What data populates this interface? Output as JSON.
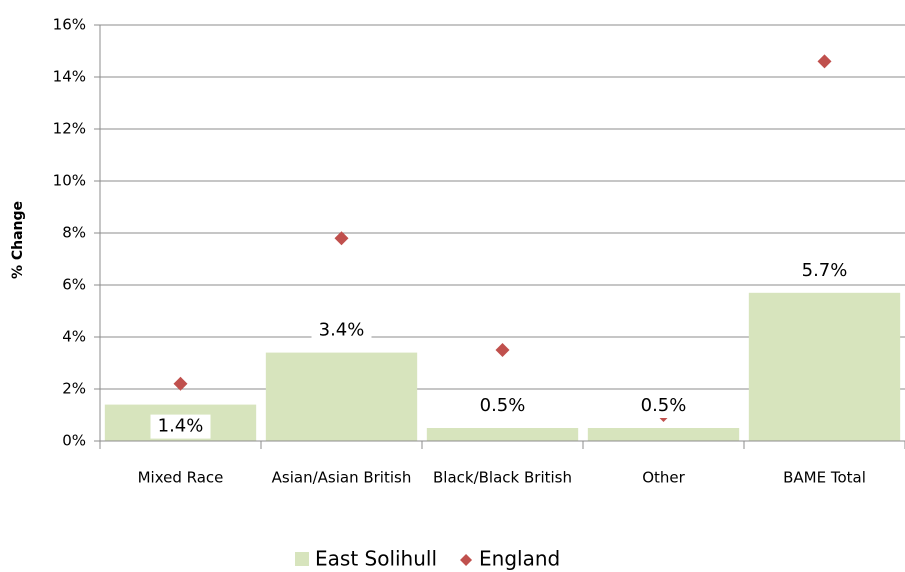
{
  "chart_data": {
    "type": "bar",
    "y_label": "% Change",
    "categories": [
      "Mixed Race",
      "Asian/Asian British",
      "Black/Black British",
      "Other",
      "BAME Total"
    ],
    "series": [
      {
        "name": "East Solihull",
        "color": "#d7e4bd",
        "values": [
          1.4,
          3.4,
          0.5,
          0.5,
          5.7
        ],
        "value_labels": [
          "1.4%",
          "3.4%",
          "0.5%",
          "0.5%",
          "5.7%"
        ]
      },
      {
        "name": "England",
        "color": "#c0504d",
        "marker": "diamond",
        "values": [
          2.2,
          7.8,
          3.5,
          1.0,
          14.6
        ]
      }
    ],
    "ylim": [
      0,
      16
    ],
    "yticks": [
      {
        "value": 0,
        "label": "0%"
      },
      {
        "value": 2,
        "label": "2%"
      },
      {
        "value": 4,
        "label": "4%"
      },
      {
        "value": 6,
        "label": "6%"
      },
      {
        "value": 8,
        "label": "8%"
      },
      {
        "value": 10,
        "label": "10%"
      },
      {
        "value": 12,
        "label": "12%"
      },
      {
        "value": 14,
        "label": "14%"
      },
      {
        "value": 16,
        "label": "16%"
      }
    ],
    "grid": true,
    "legend": "bottom"
  }
}
